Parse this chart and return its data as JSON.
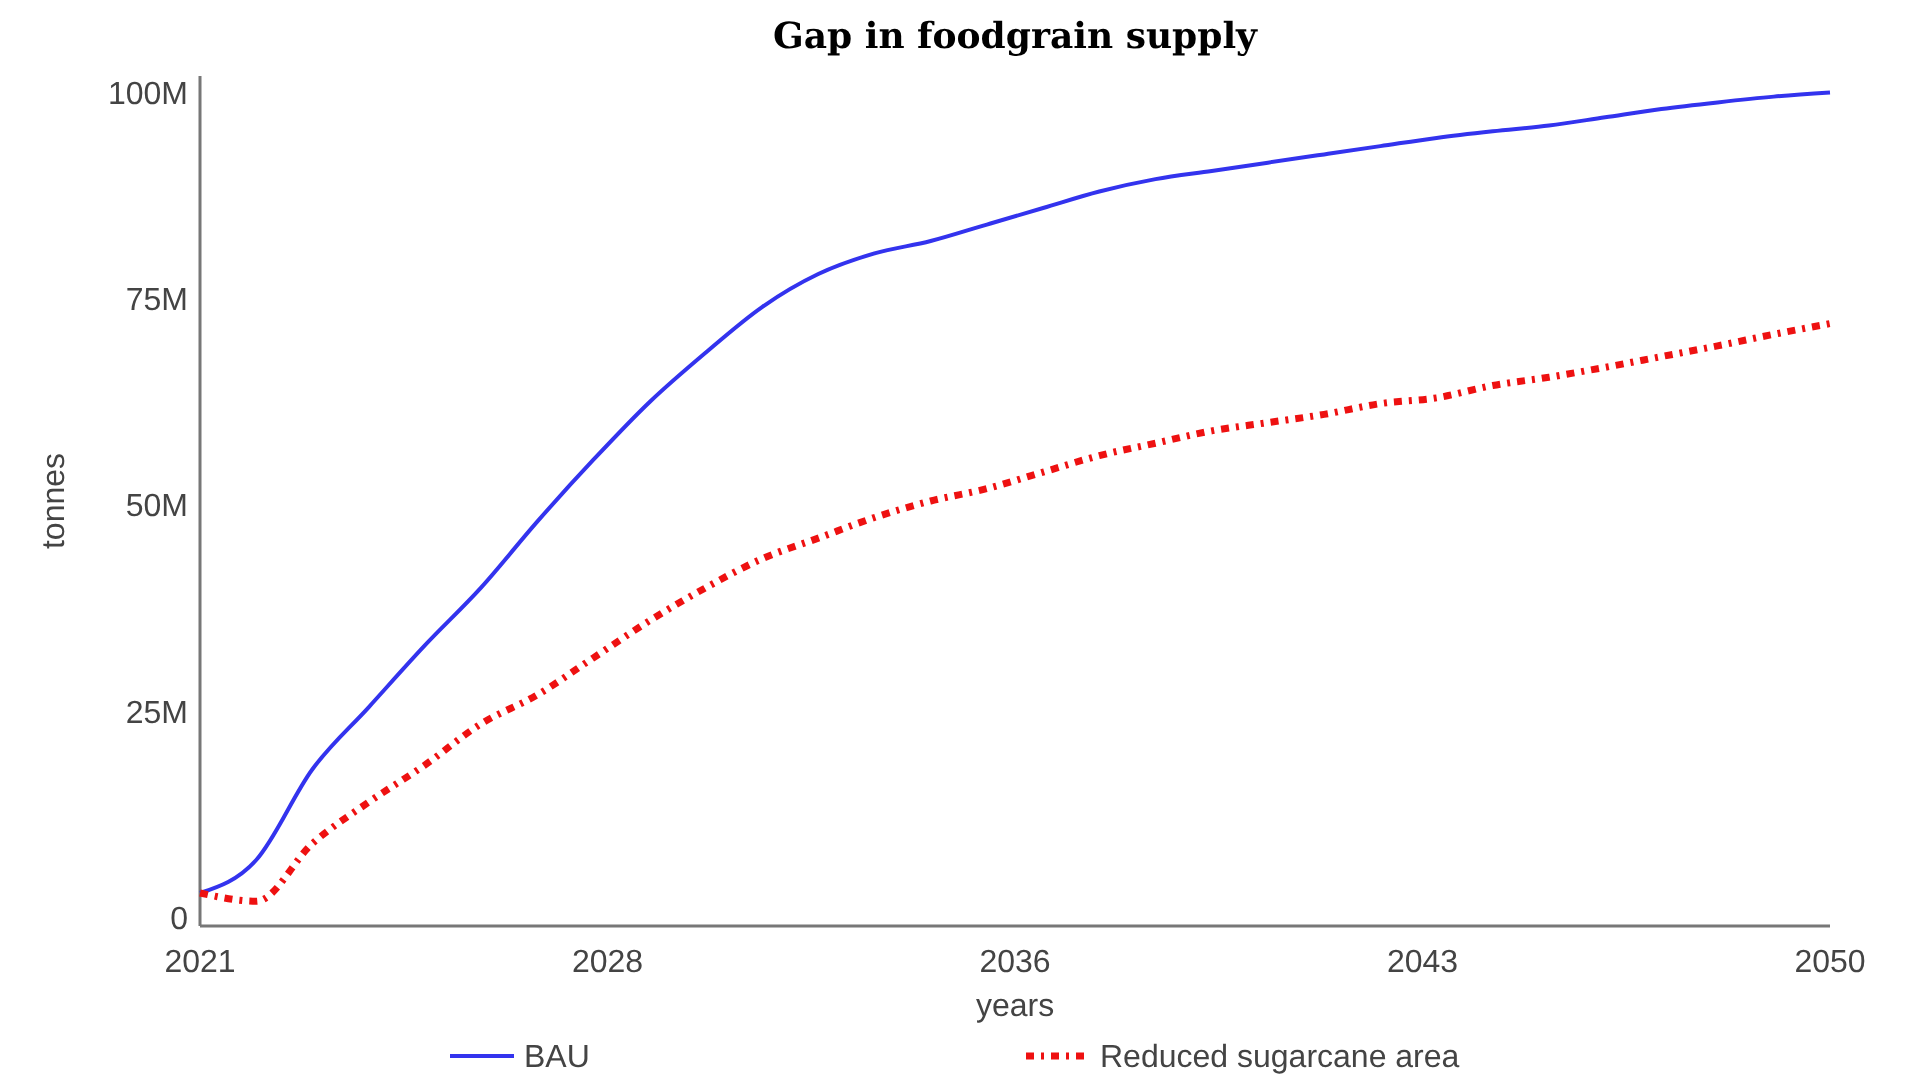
{
  "chart_data": {
    "type": "line",
    "title": "Gap in foodgrain supply",
    "xlabel": "years",
    "ylabel": "tonnes",
    "x": [
      2021,
      2022,
      2023,
      2024,
      2025,
      2026,
      2027,
      2028,
      2029,
      2030,
      2031,
      2032,
      2033,
      2034,
      2035,
      2036,
      2037,
      2038,
      2039,
      2040,
      2041,
      2042,
      2043,
      2044,
      2045,
      2046,
      2047,
      2048,
      2049,
      2050
    ],
    "series": [
      {
        "name": "BAU",
        "color": "#3333ee",
        "line_style": "solid",
        "values": [
          3,
          7,
          18,
          25.5,
          33,
          40,
          48,
          55.5,
          62.5,
          68.5,
          74,
          78,
          80.5,
          82,
          84,
          86,
          88,
          89.5,
          90.5,
          91.5,
          92.5,
          93.5,
          94.5,
          95.3,
          96,
          97,
          98,
          98.8,
          99.5,
          100
        ]
      },
      {
        "name": "Reduced sugarcane area",
        "color": "#ee1111",
        "line_style": "dotted",
        "values": [
          3,
          2,
          9,
          14,
          18.5,
          23.5,
          27,
          31.5,
          36,
          40,
          43.5,
          46,
          48.5,
          50.5,
          52,
          54,
          56,
          57.5,
          59,
          60,
          61,
          62.3,
          63,
          64.5,
          65.5,
          66.7,
          68,
          69.3,
          70.7,
          72
        ]
      }
    ],
    "xlim": [
      2021,
      2050
    ],
    "xticks": [
      2021,
      {
        "value": 2028.25,
        "label": "2028"
      },
      {
        "value": 2035.5,
        "label": "2036"
      },
      {
        "value": 2042.75,
        "label": "2043"
      },
      2050
    ],
    "ylim": [
      -1,
      102
    ],
    "yticks": [
      0,
      {
        "value": 25,
        "label": "25M"
      },
      {
        "value": 50,
        "label": "50M"
      },
      {
        "value": 75,
        "label": "75M"
      },
      {
        "value": 100,
        "label": "100M"
      }
    ],
    "grid": false,
    "legend": "bottom",
    "marker": "none"
  }
}
